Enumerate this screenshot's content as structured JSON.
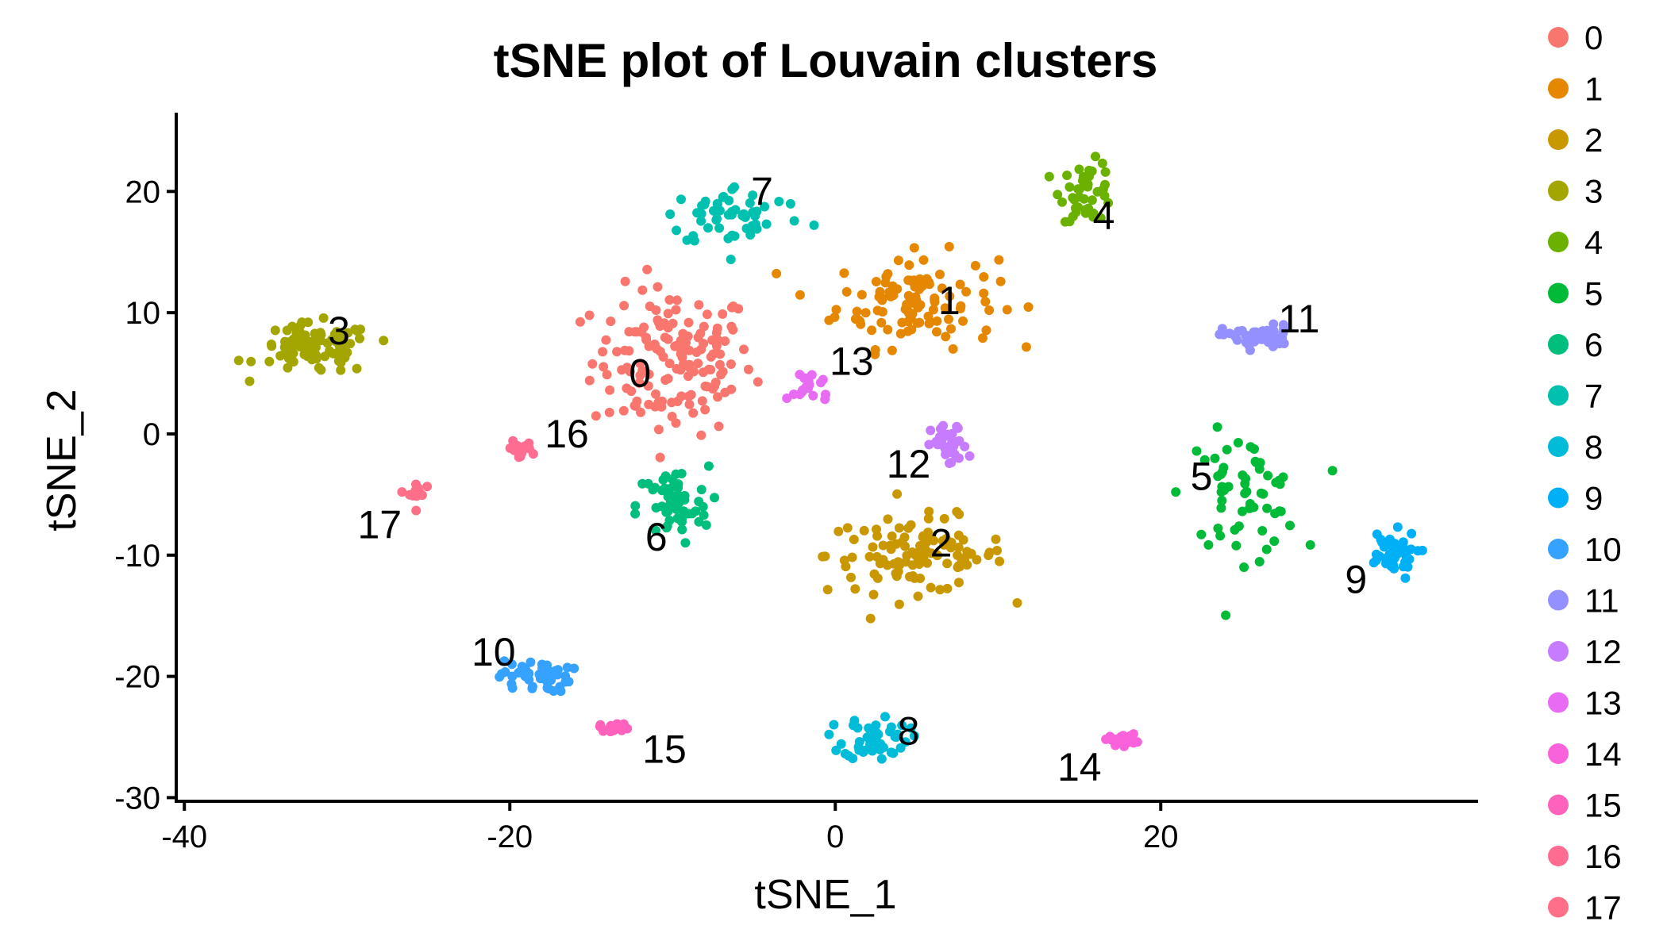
{
  "chart_data": {
    "type": "scatter",
    "title": "tSNE plot of Louvain clusters",
    "xlabel": "tSNE_1",
    "ylabel": "tSNE_2",
    "xlim": [
      -40.5,
      39.5
    ],
    "ylim": [
      -30.3,
      26.5
    ],
    "xticks": [
      -40,
      -20,
      0,
      20
    ],
    "xtick_labels": [
      "-40",
      "-20",
      "0",
      "20"
    ],
    "yticks": [
      -30,
      -20,
      -10,
      0,
      10,
      20
    ],
    "ytick_labels": [
      "-30",
      "-20",
      "-10",
      "0",
      "10",
      "20"
    ],
    "grid": false,
    "legend_position": "right",
    "point_count_note": "",
    "clusters": [
      {
        "name": "0",
        "color": "#F8766D",
        "label_pos": [
          -12,
          5
        ],
        "center": [
          -10,
          6
        ],
        "spread": [
          4.5,
          5.5
        ],
        "n": 150
      },
      {
        "name": "1",
        "color": "#E58700",
        "label_pos": [
          7,
          11
        ],
        "center": [
          5,
          11
        ],
        "spread": [
          4.5,
          3.5
        ],
        "n": 110
      },
      {
        "name": "2",
        "color": "#C99800",
        "label_pos": [
          6.5,
          -9
        ],
        "center": [
          5,
          -10
        ],
        "spread": [
          5,
          2.8
        ],
        "n": 110
      },
      {
        "name": "3",
        "color": "#A3A500",
        "label_pos": [
          -30.5,
          8.5
        ],
        "center": [
          -32,
          7
        ],
        "spread": [
          3.2,
          1.9
        ],
        "n": 90
      },
      {
        "name": "4",
        "color": "#6BB100",
        "label_pos": [
          16.5,
          18
        ],
        "center": [
          15.5,
          20
        ],
        "spread": [
          1.5,
          2.2
        ],
        "n": 45
      },
      {
        "name": "5",
        "color": "#00BA38",
        "label_pos": [
          22.5,
          -3.5
        ],
        "center": [
          25,
          -5
        ],
        "spread": [
          3.2,
          4.5
        ],
        "n": 60
      },
      {
        "name": "6",
        "color": "#00BF7D",
        "label_pos": [
          -11,
          -8.5
        ],
        "center": [
          -10,
          -6
        ],
        "spread": [
          2,
          3
        ],
        "n": 60
      },
      {
        "name": "7",
        "color": "#00C0AF",
        "label_pos": [
          -4.5,
          20
        ],
        "center": [
          -6,
          18
        ],
        "spread": [
          4,
          2.3
        ],
        "n": 55
      },
      {
        "name": "8",
        "color": "#00BCD8",
        "label_pos": [
          4.5,
          -24.5
        ],
        "center": [
          2.5,
          -25
        ],
        "spread": [
          1.8,
          1.7
        ],
        "n": 50
      },
      {
        "name": "9",
        "color": "#00B0F6",
        "label_pos": [
          32,
          -12
        ],
        "center": [
          34,
          -10
        ],
        "spread": [
          1.6,
          1.8
        ],
        "n": 45
      },
      {
        "name": "10",
        "color": "#35A2FF",
        "label_pos": [
          -21,
          -18
        ],
        "center": [
          -18.5,
          -20
        ],
        "spread": [
          2,
          1.2
        ],
        "n": 45
      },
      {
        "name": "11",
        "color": "#9590FF",
        "label_pos": [
          28.5,
          9.5
        ],
        "center": [
          26,
          8
        ],
        "spread": [
          2,
          0.9
        ],
        "n": 45
      },
      {
        "name": "12",
        "color": "#C77CFF",
        "label_pos": [
          4.5,
          -2.5
        ],
        "center": [
          7,
          -1
        ],
        "spread": [
          1,
          1.6
        ],
        "n": 35
      },
      {
        "name": "13",
        "color": "#E76BF3",
        "label_pos": [
          1,
          6
        ],
        "center": [
          -1.5,
          4
        ],
        "spread": [
          1.2,
          1.5
        ],
        "n": 20
      },
      {
        "name": "14",
        "color": "#FA62DB",
        "label_pos": [
          15,
          -27.5
        ],
        "center": [
          17.5,
          -25.2
        ],
        "spread": [
          0.9,
          0.4
        ],
        "n": 20
      },
      {
        "name": "15",
        "color": "#FF62BC",
        "label_pos": [
          -10.5,
          -26
        ],
        "center": [
          -13.5,
          -24.2
        ],
        "spread": [
          0.9,
          0.3
        ],
        "n": 18
      },
      {
        "name": "16",
        "color": "#FF6C91",
        "label_pos": [
          -16.5,
          0
        ],
        "center": [
          -19.5,
          -1.3
        ],
        "spread": [
          0.8,
          0.6
        ],
        "n": 18
      },
      {
        "name": "17",
        "color": "#FF6F87",
        "label_pos": [
          -28,
          -7.5
        ],
        "center": [
          -25.8,
          -5
        ],
        "spread": [
          0.5,
          1
        ],
        "n": 14
      }
    ]
  }
}
